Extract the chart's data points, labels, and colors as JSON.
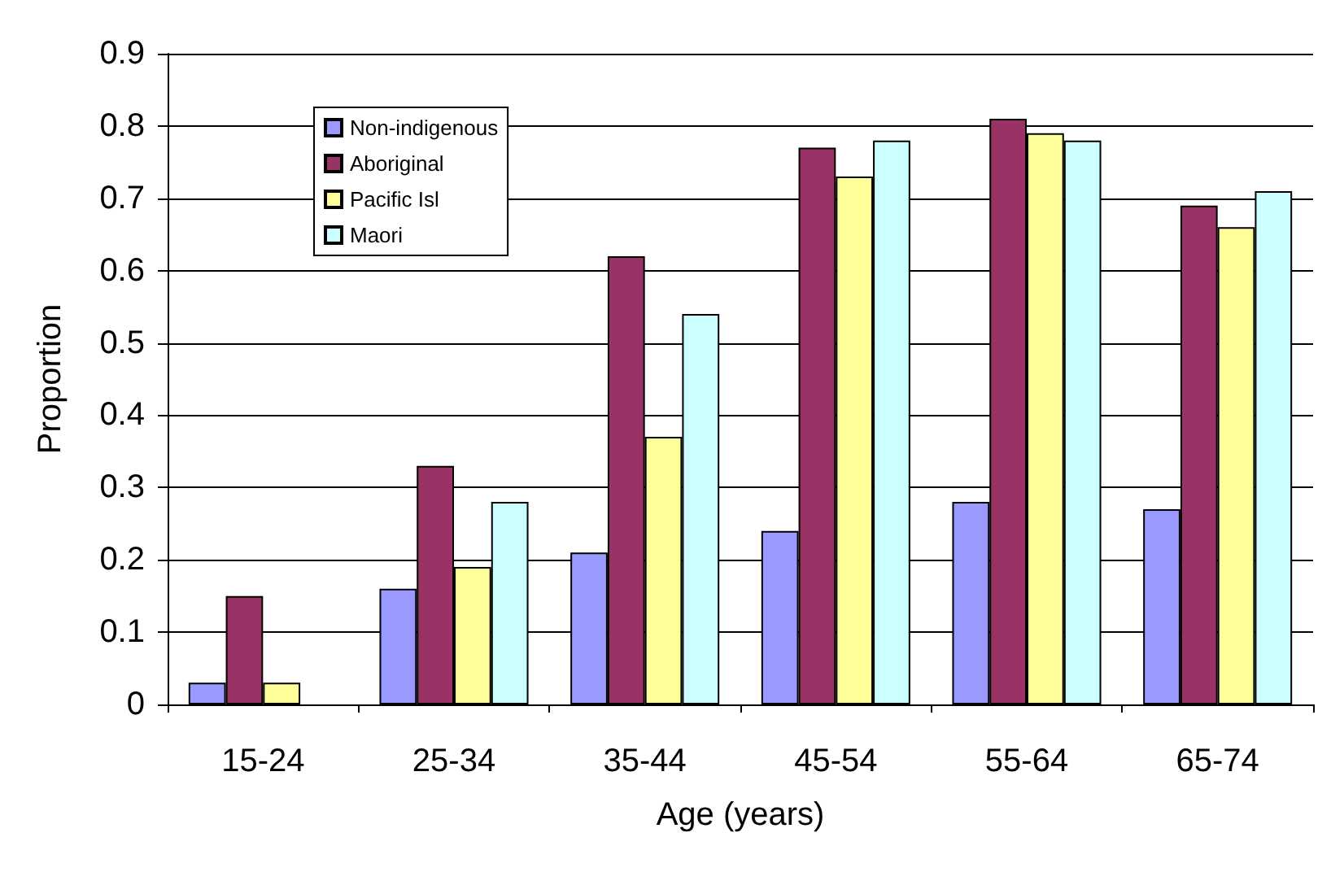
{
  "chart_data": {
    "type": "bar",
    "xlabel": "Age (years)",
    "ylabel": "Proportion",
    "categories": [
      "15-24",
      "25-34",
      "35-44",
      "45-54",
      "55-64",
      "65-74"
    ],
    "series": [
      {
        "name": "Non-indigenous",
        "color": "#9999ff",
        "values": [
          0.03,
          0.16,
          0.21,
          0.24,
          0.28,
          0.27
        ]
      },
      {
        "name": "Aboriginal",
        "color": "#993366",
        "values": [
          0.15,
          0.33,
          0.62,
          0.77,
          0.81,
          0.69
        ]
      },
      {
        "name": "Pacific Isl",
        "color": "#ffff99",
        "values": [
          0.03,
          0.19,
          0.37,
          0.73,
          0.79,
          0.66
        ]
      },
      {
        "name": "Maori",
        "color": "#ccffff",
        "values": [
          null,
          0.28,
          0.54,
          0.78,
          0.78,
          0.71
        ]
      }
    ],
    "ylim": [
      0,
      0.9
    ],
    "yticks": [
      0,
      0.1,
      0.2,
      0.3,
      0.4,
      0.5,
      0.6,
      0.7,
      0.8,
      0.9
    ],
    "grid": "y",
    "legend": "top left"
  }
}
